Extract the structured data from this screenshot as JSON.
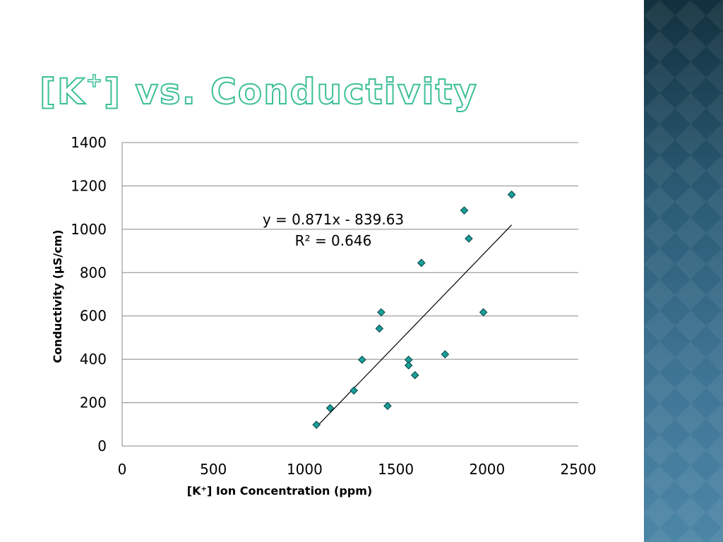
{
  "slide": {
    "title_main": "[K",
    "title_sup": "+",
    "title_rest": "] vs. Conductivity"
  },
  "colors": {
    "title_outline": "#3cbf97",
    "marker_fill": "#1aa09a",
    "marker_stroke": "#0e4f52",
    "gridline": "#878787",
    "trendline": "#000000",
    "side_panel": "#2a5a73"
  },
  "chart_data": {
    "type": "scatter",
    "title": "",
    "xlabel": "[K⁺] Ion Concentration (ppm)",
    "ylabel": "Conductivity  (µS/cm)",
    "xlim": [
      0,
      2500
    ],
    "ylim": [
      0,
      1400
    ],
    "x_ticks": [
      0,
      500,
      1000,
      1500,
      2000,
      2500
    ],
    "y_ticks": [
      0,
      200,
      400,
      600,
      800,
      1000,
      1200,
      1400
    ],
    "grid": "horizontal",
    "legend": "none",
    "marker": "diamond",
    "points": [
      {
        "x": 1065,
        "y": 98
      },
      {
        "x": 1140,
        "y": 175
      },
      {
        "x": 1270,
        "y": 256
      },
      {
        "x": 1315,
        "y": 398
      },
      {
        "x": 1410,
        "y": 542
      },
      {
        "x": 1420,
        "y": 617
      },
      {
        "x": 1455,
        "y": 185
      },
      {
        "x": 1570,
        "y": 398
      },
      {
        "x": 1570,
        "y": 372
      },
      {
        "x": 1605,
        "y": 327
      },
      {
        "x": 1640,
        "y": 845
      },
      {
        "x": 1770,
        "y": 423
      },
      {
        "x": 1875,
        "y": 1087
      },
      {
        "x": 1900,
        "y": 957
      },
      {
        "x": 1980,
        "y": 617
      },
      {
        "x": 2135,
        "y": 1160
      }
    ],
    "trendline": {
      "type": "linear",
      "slope": 0.871,
      "intercept": -839.63,
      "x_range": [
        1065,
        2135
      ],
      "equation_label": "y = 0.871x - 839.63",
      "r2_label": "R² = 0.646"
    }
  }
}
